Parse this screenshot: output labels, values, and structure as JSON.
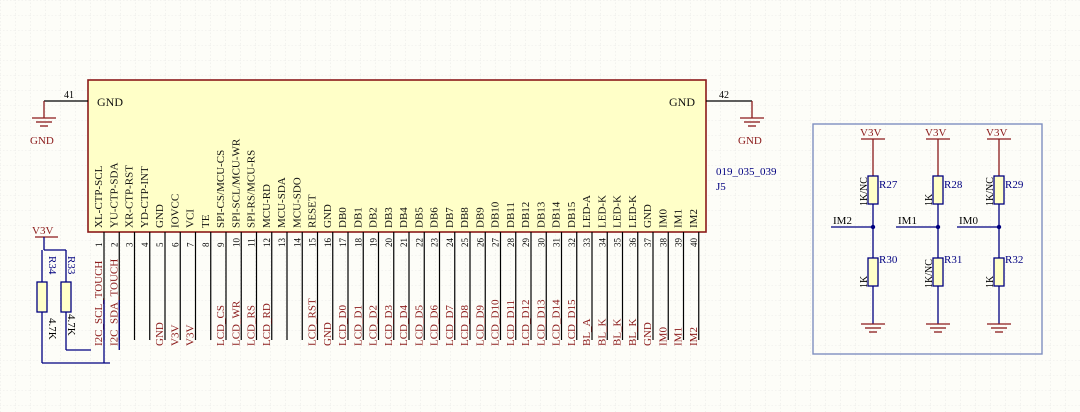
{
  "connector": {
    "designator": "J5",
    "part": "019_035_039",
    "left_gnd": {
      "label": "GND",
      "pin": "41",
      "power": "GND"
    },
    "right_gnd": {
      "label": "GND",
      "pin": "42",
      "power": "GND"
    },
    "pins": [
      {
        "num": "1",
        "name": "XL-CTP-SCL",
        "net": "I2C_SCL_TOUCH"
      },
      {
        "num": "2",
        "name": "YU-CTP-SDA",
        "net": "I2C_SDA_TOUCH"
      },
      {
        "num": "3",
        "name": "XR-CTP-RST",
        "net": ""
      },
      {
        "num": "4",
        "name": "YD-CTP-INT",
        "net": ""
      },
      {
        "num": "5",
        "name": "GND",
        "net": "GND"
      },
      {
        "num": "6",
        "name": "IOVCC",
        "net": "V3V"
      },
      {
        "num": "7",
        "name": "VCI",
        "net": "V3V"
      },
      {
        "num": "8",
        "name": "TE",
        "net": ""
      },
      {
        "num": "9",
        "name": "SPI-CS/MCU-CS",
        "net": "LCD_CS"
      },
      {
        "num": "10",
        "name": "SPI-SCL/MCU-WR",
        "net": "LCD_WR"
      },
      {
        "num": "11",
        "name": "SPI-RS/MCU-RS",
        "net": "LCD_RS"
      },
      {
        "num": "12",
        "name": "MCU-RD",
        "net": "LCD_RD"
      },
      {
        "num": "13",
        "name": "MCU-SDA",
        "net": ""
      },
      {
        "num": "14",
        "name": "MCU-SDO",
        "net": ""
      },
      {
        "num": "15",
        "name": "RESET",
        "net": "LCD_RST"
      },
      {
        "num": "16",
        "name": "GND",
        "net": "GND"
      },
      {
        "num": "17",
        "name": "DB0",
        "net": "LCD_D0"
      },
      {
        "num": "18",
        "name": "DB1",
        "net": "LCD_D1"
      },
      {
        "num": "19",
        "name": "DB2",
        "net": "LCD_D2"
      },
      {
        "num": "20",
        "name": "DB3",
        "net": "LCD_D3"
      },
      {
        "num": "21",
        "name": "DB4",
        "net": "LCD_D4"
      },
      {
        "num": "22",
        "name": "DB5",
        "net": "LCD_D5"
      },
      {
        "num": "23",
        "name": "DB6",
        "net": "LCD_D6"
      },
      {
        "num": "24",
        "name": "DB7",
        "net": "LCD_D7"
      },
      {
        "num": "25",
        "name": "DB8",
        "net": "LCD_D8"
      },
      {
        "num": "26",
        "name": "DB9",
        "net": "LCD_D9"
      },
      {
        "num": "27",
        "name": "DB10",
        "net": "LCD_D10"
      },
      {
        "num": "28",
        "name": "DB11",
        "net": "LCD_D11"
      },
      {
        "num": "29",
        "name": "DB12",
        "net": "LCD_D12"
      },
      {
        "num": "30",
        "name": "DB13",
        "net": "LCD_D13"
      },
      {
        "num": "31",
        "name": "DB14",
        "net": "LCD_D14"
      },
      {
        "num": "32",
        "name": "DB15",
        "net": "LCD_D15"
      },
      {
        "num": "33",
        "name": "LED-A",
        "net": "BL_A"
      },
      {
        "num": "34",
        "name": "LED-K",
        "net": "BL_K"
      },
      {
        "num": "35",
        "name": "LED-K",
        "net": "BL_K"
      },
      {
        "num": "36",
        "name": "LED-K",
        "net": "BL_K"
      },
      {
        "num": "37",
        "name": "GND",
        "net": "GND"
      },
      {
        "num": "38",
        "name": "IM0",
        "net": "IM0"
      },
      {
        "num": "39",
        "name": "IM1",
        "net": "IM1"
      },
      {
        "num": "40",
        "name": "IM2",
        "net": "IM2"
      }
    ]
  },
  "pullups": {
    "power": "V3V",
    "r33": {
      "des": "R33",
      "val": "4.7K"
    },
    "r34": {
      "des": "R34",
      "val": "4.7K"
    }
  },
  "im_config": {
    "power": "V3V",
    "columns": [
      {
        "net": "IM2",
        "top": {
          "des": "R27",
          "val": "1K/NC"
        },
        "bot": {
          "des": "R30",
          "val": "1K"
        }
      },
      {
        "net": "IM1",
        "top": {
          "des": "R28",
          "val": "1K"
        },
        "bot": {
          "des": "R31",
          "val": "1K/NC"
        }
      },
      {
        "net": "IM0",
        "top": {
          "des": "R29",
          "val": "1K/NC"
        },
        "bot": {
          "des": "R32",
          "val": "1K"
        }
      }
    ]
  },
  "colors": {
    "wire": "#000080",
    "part": "#8b1a1a",
    "pinname": "#111111",
    "net": "#8b1a1a",
    "des": "#000080",
    "background": "#fdfdf8",
    "grid": "#d7d7d7"
  }
}
